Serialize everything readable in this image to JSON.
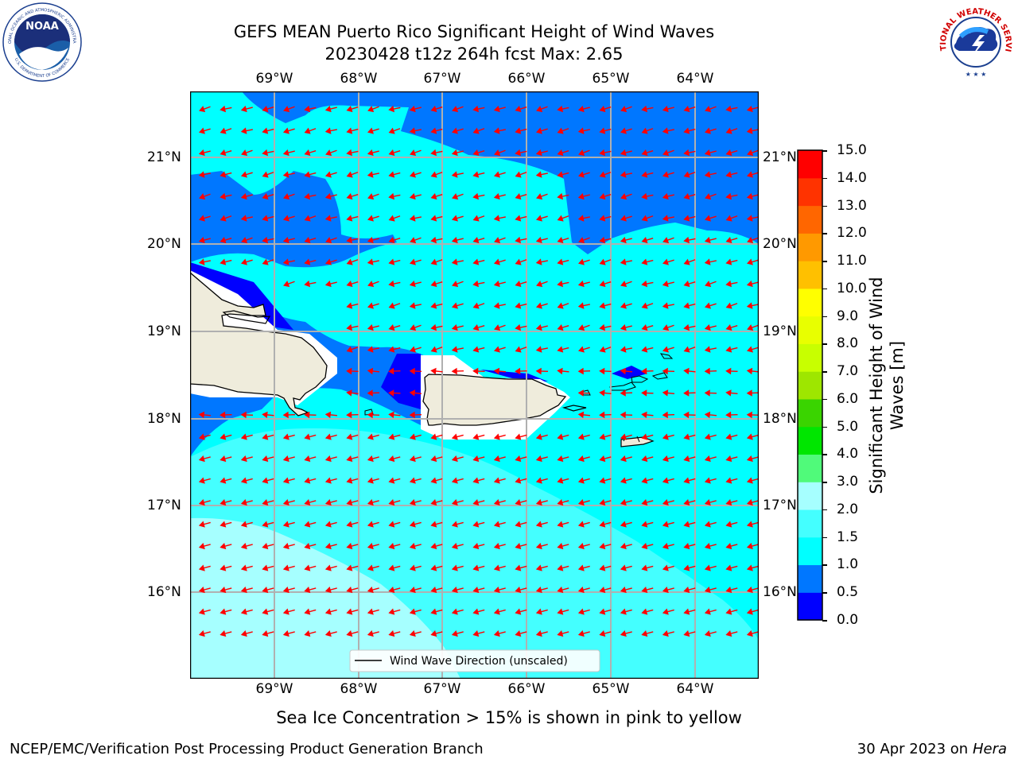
{
  "title": {
    "line1": "GEFS MEAN Puerto Rico Significant Height of Wind Waves",
    "line2": "20230428 t12z 264h fcst   Max: 2.65"
  },
  "map": {
    "lon_ticks": [
      "69°W",
      "68°W",
      "67°W",
      "66°W",
      "65°W",
      "64°W"
    ],
    "lat_ticks": [
      "21°N",
      "20°N",
      "19°N",
      "18°N",
      "17°N",
      "16°N"
    ],
    "legend_label": "Wind Wave Direction (unscaled)",
    "arrow_color": "#ff0000"
  },
  "colorbar": {
    "label": "Significant Height of Wind Waves [m]",
    "label_line1": "Significant Height of Wind",
    "label_line2": "Waves [m]",
    "levels": [
      "0.0",
      "0.5",
      "1.0",
      "1.5",
      "2.0",
      "3.0",
      "4.0",
      "5.0",
      "6.0",
      "7.0",
      "8.0",
      "9.0",
      "10.0",
      "11.0",
      "12.0",
      "13.0",
      "14.0",
      "15.0"
    ],
    "colors": [
      "#0000ff",
      "#0077ff",
      "#00ffff",
      "#44ffff",
      "#a6ffff",
      "#50fa7a",
      "#00e600",
      "#3ad400",
      "#9ee600",
      "#c8ff00",
      "#e8ff00",
      "#ffff00",
      "#ffc000",
      "#ff9900",
      "#ff6600",
      "#ff3300",
      "#ff0000"
    ]
  },
  "note": "Sea Ice Concentration > 15% is shown in pink to yellow",
  "footer": {
    "left": "NCEP/EMC/Verification Post Processing Product Generation Branch",
    "right_prefix": "30 Apr 2023 on ",
    "right_host": "Hera"
  },
  "logos": {
    "noaa_text": "NOAA",
    "noaa_ring_top": "NATIONAL OCEANIC AND ATMOSPHERIC ADMINISTRATION",
    "noaa_ring_bottom": "U.S. DEPARTMENT OF COMMERCE",
    "nws_ring": "NATIONAL WEATHER SERVICE"
  }
}
